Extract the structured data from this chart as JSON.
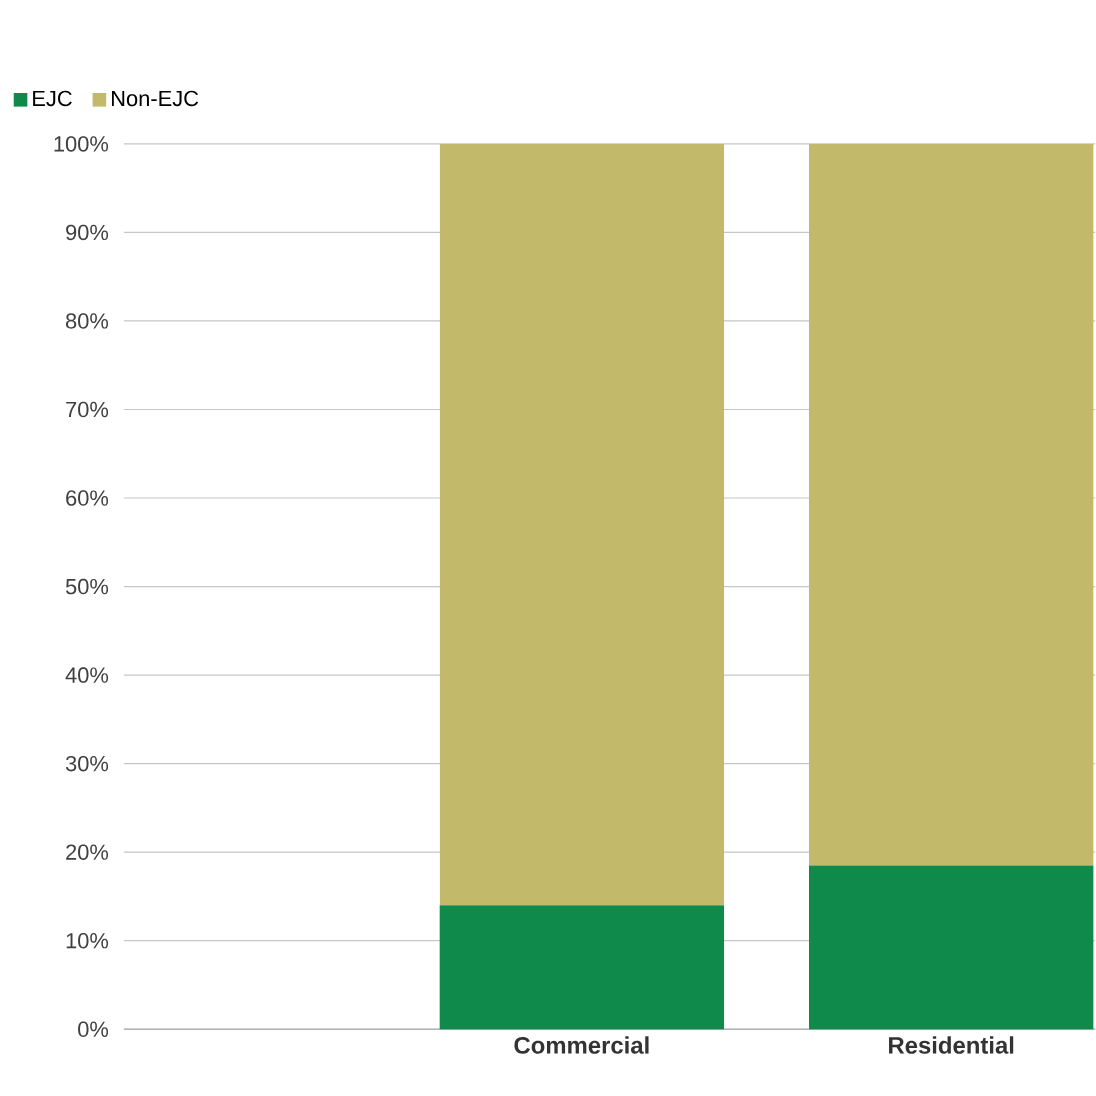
{
  "chart_data": {
    "type": "bar",
    "stacked": true,
    "categories": [
      null,
      "Commercial",
      "Residential"
    ],
    "series": [
      {
        "name": "EJC",
        "color": "#0f8a4a",
        "values": [
          null,
          14.0,
          18.5
        ]
      },
      {
        "name": "Non-EJC",
        "color": "#c2ba6a",
        "values": [
          null,
          86.0,
          81.5
        ]
      }
    ],
    "ylim": [
      0,
      100
    ],
    "yticks": [
      {
        "value": 0,
        "label": "0%"
      },
      {
        "value": 10,
        "label": "10%"
      },
      {
        "value": 20,
        "label": "20%"
      },
      {
        "value": 30,
        "label": "30%"
      },
      {
        "value": 40,
        "label": "40%"
      },
      {
        "value": 50,
        "label": "50%"
      },
      {
        "value": 60,
        "label": "60%"
      },
      {
        "value": 70,
        "label": "70%"
      },
      {
        "value": 80,
        "label": "80%"
      },
      {
        "value": 90,
        "label": "90%"
      },
      {
        "value": 100,
        "label": "100%"
      }
    ],
    "grid": "y",
    "legend": "top left"
  }
}
